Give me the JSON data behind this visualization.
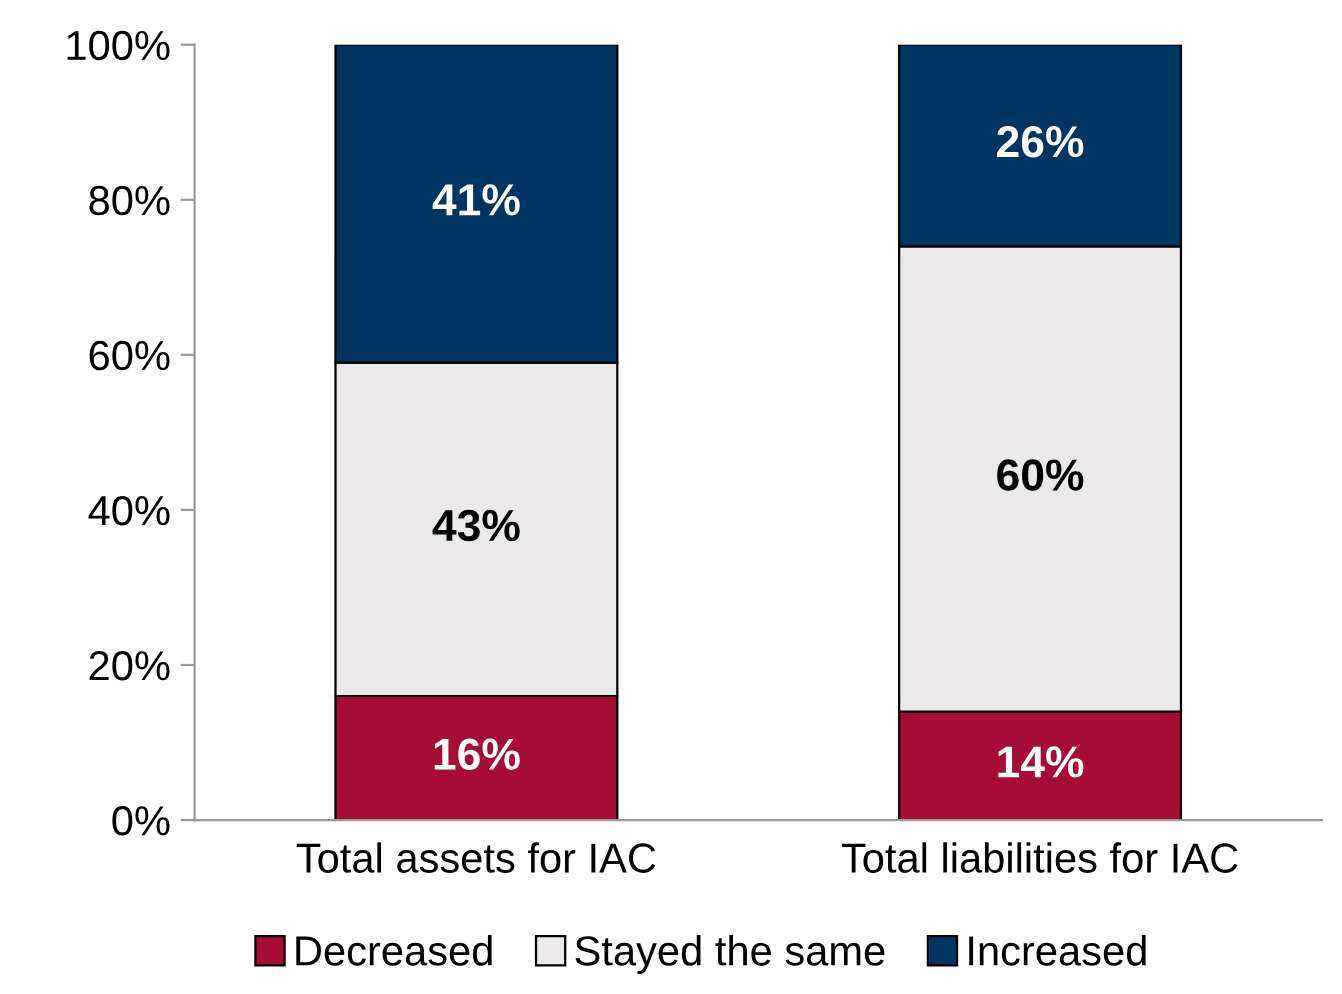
{
  "chart_data": {
    "type": "bar",
    "stacked": true,
    "categories": [
      "Total assets for IAC",
      "Total liabilities for IAC"
    ],
    "series": [
      {
        "name": "Decreased",
        "color": "#a50d35",
        "values": [
          16,
          14
        ],
        "value_labels": [
          "16%",
          "14%"
        ]
      },
      {
        "name": "Stayed the same",
        "color": "#ebe9ea",
        "values": [
          43,
          60
        ],
        "value_labels": [
          "43%",
          "60%"
        ]
      },
      {
        "name": "Increased",
        "color": "#003562",
        "values": [
          41,
          26
        ],
        "value_labels": [
          "41%",
          "26%"
        ]
      }
    ],
    "ylim": [
      0,
      100
    ],
    "yticks": [
      {
        "value": 0,
        "label": "0%"
      },
      {
        "value": 20,
        "label": "20%"
      },
      {
        "value": 40,
        "label": "40%"
      },
      {
        "value": 60,
        "label": "60%"
      },
      {
        "value": 80,
        "label": "80%"
      },
      {
        "value": 100,
        "label": "100%"
      }
    ],
    "grid": false,
    "legend": "bottom"
  }
}
